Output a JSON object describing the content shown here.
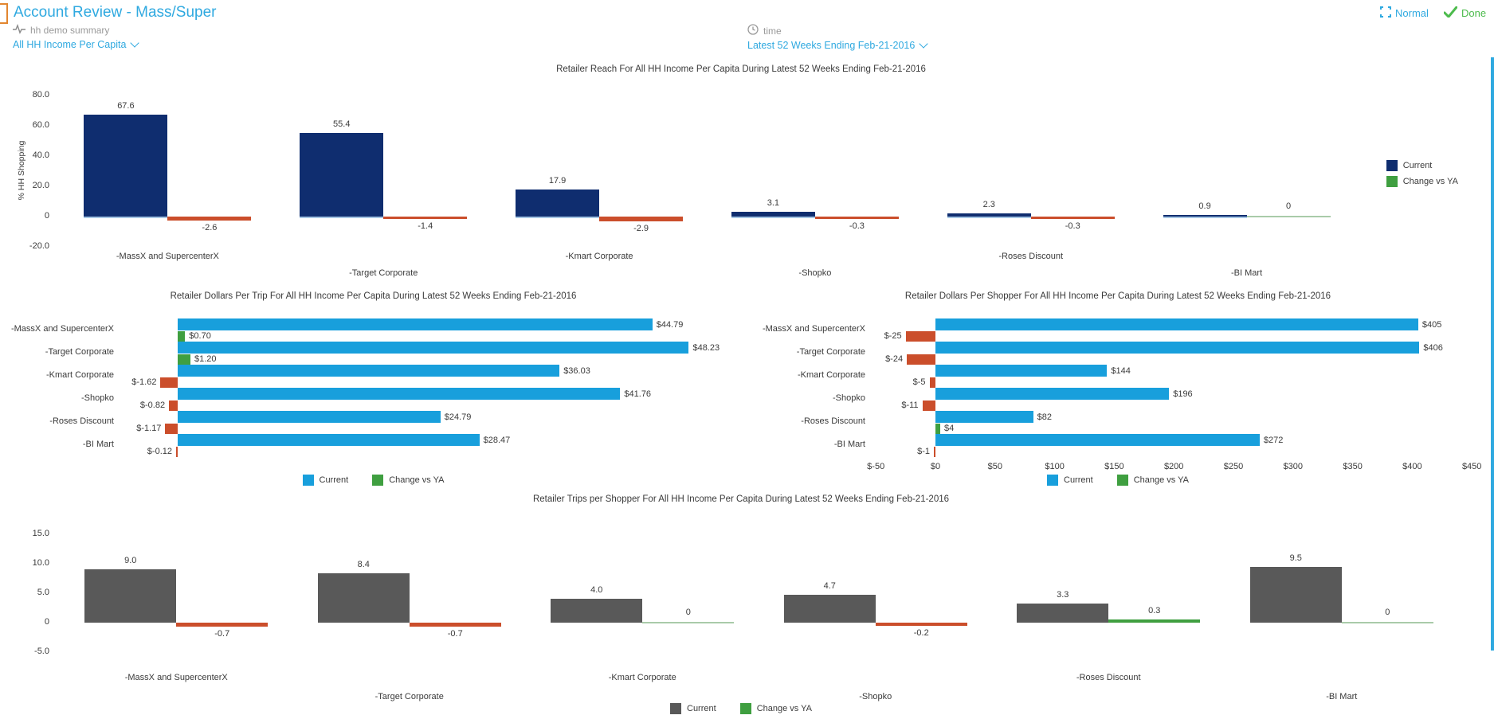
{
  "header": {
    "title": "Account Review - Mass/Super",
    "view_mode_label": "Normal",
    "done_label": "Done"
  },
  "filters": {
    "metric_group": {
      "label": "hh demo summary",
      "value": "All HH Income Per Capita"
    },
    "time": {
      "label": "time",
      "value": "Latest 52 Weeks Ending Feb-21-2016"
    }
  },
  "colors": {
    "accent_blue": "#2fa9e0",
    "done_green": "#4cbb4c",
    "navy": "#0f2d6f",
    "light_blue": "#189fdc",
    "red": "#cb4e2b",
    "green": "#3f9f40",
    "gray": "#595959",
    "zero_change_line": "#a9cba9",
    "baseline_blue": "#a6c6e4"
  },
  "chart_data": [
    {
      "id": "reach",
      "type": "bar",
      "orientation": "vertical",
      "title": "Retailer Reach For All HH Income Per Capita During Latest 52 Weeks Ending Feb-21-2016",
      "ylabel": "% HH Shopping",
      "ylim": [
        -20,
        80
      ],
      "yticks": [
        80,
        60,
        40,
        20,
        0,
        -20
      ],
      "ytick_labels": [
        "80.0",
        "60.0",
        "40.0",
        "20.0",
        "0",
        "-20.0"
      ],
      "legend_position": "right",
      "categories": [
        "-MassX and SupercenterX",
        "-Target Corporate",
        "-Kmart Corporate",
        "-Shopko",
        "-Roses Discount",
        "-BI Mart"
      ],
      "series": [
        {
          "name": "Current",
          "values": [
            67.6,
            55.4,
            17.9,
            3.1,
            2.3,
            0.9
          ],
          "labels": [
            "67.6",
            "55.4",
            "17.9",
            "3.1",
            "2.3",
            "0.9"
          ]
        },
        {
          "name": "Change vs YA",
          "values": [
            -2.6,
            -1.4,
            -2.9,
            -0.3,
            -0.3,
            0
          ],
          "labels": [
            "-2.6",
            "-1.4",
            "-2.9",
            "-0.3",
            "-0.3",
            "0"
          ]
        }
      ]
    },
    {
      "id": "dollarsPerTrip",
      "type": "bar",
      "orientation": "horizontal",
      "title": "Retailer Dollars Per Trip For All HH Income Per Capita During Latest 52 Weeks Ending Feb-21-2016",
      "legend_position": "bottom",
      "categories": [
        "-MassX and SupercenterX",
        "-Target Corporate",
        "-Kmart Corporate",
        "-Shopko",
        "-Roses Discount",
        "-BI Mart"
      ],
      "series": [
        {
          "name": "Current",
          "values": [
            44.79,
            48.23,
            36.03,
            41.76,
            24.79,
            28.47
          ],
          "labels": [
            "$44.79",
            "$48.23",
            "$36.03",
            "$41.76",
            "$24.79",
            "$28.47"
          ]
        },
        {
          "name": "Change vs YA",
          "values": [
            0.7,
            1.2,
            -1.62,
            -0.82,
            -1.17,
            -0.12
          ],
          "labels": [
            "$0.70",
            "$1.20",
            "$-1.62",
            "$-0.82",
            "$-1.17",
            "$-0.12"
          ]
        }
      ]
    },
    {
      "id": "dollarsPerShopper",
      "type": "bar",
      "orientation": "horizontal",
      "title": "Retailer Dollars Per Shopper For All HH Income Per Capita During Latest 52 Weeks Ending Feb-21-2016",
      "legend_position": "bottom",
      "xtick_values": [
        -50,
        0,
        50,
        100,
        150,
        200,
        250,
        300,
        350,
        400,
        450
      ],
      "xtick_labels": [
        "$-50",
        "$0",
        "$50",
        "$100",
        "$150",
        "$200",
        "$250",
        "$300",
        "$350",
        "$400",
        "$450"
      ],
      "categories": [
        "-MassX and SupercenterX",
        "-Target Corporate",
        "-Kmart Corporate",
        "-Shopko",
        "-Roses Discount",
        "-BI Mart"
      ],
      "series": [
        {
          "name": "Current",
          "values": [
            405,
            406,
            144,
            196,
            82,
            272
          ],
          "labels": [
            "$405",
            "$406",
            "$144",
            "$196",
            "$82",
            "$272"
          ]
        },
        {
          "name": "Change vs YA",
          "values": [
            -25,
            -24,
            -5,
            -11,
            4,
            -1
          ],
          "labels": [
            "$-25",
            "$-24",
            "$-5",
            "$-11",
            "$4",
            "$-1"
          ]
        }
      ]
    },
    {
      "id": "trips",
      "type": "bar",
      "orientation": "vertical",
      "title": "Retailer Trips per Shopper For All HH Income Per Capita During Latest 52 Weeks Ending Feb-21-2016",
      "ylabel": "",
      "ylim": [
        -5,
        15
      ],
      "yticks": [
        15,
        10,
        5,
        0,
        -5
      ],
      "ytick_labels": [
        "15.0",
        "10.0",
        "5.0",
        "0",
        "-5.0"
      ],
      "legend_position": "bottom",
      "categories": [
        "-MassX and SupercenterX",
        "-Target Corporate",
        "-Kmart Corporate",
        "-Shopko",
        "-Roses Discount",
        "-BI Mart"
      ],
      "series": [
        {
          "name": "Current",
          "values": [
            9.0,
            8.4,
            4.0,
            4.7,
            3.3,
            9.5
          ],
          "labels": [
            "9.0",
            "8.4",
            "4.0",
            "4.7",
            "3.3",
            "9.5"
          ]
        },
        {
          "name": "Change vs YA",
          "values": [
            -0.7,
            -0.7,
            0,
            -0.2,
            0.3,
            0
          ],
          "labels": [
            "-0.7",
            "-0.7",
            "0",
            "-0.2",
            "0.3",
            "0"
          ]
        }
      ]
    }
  ]
}
